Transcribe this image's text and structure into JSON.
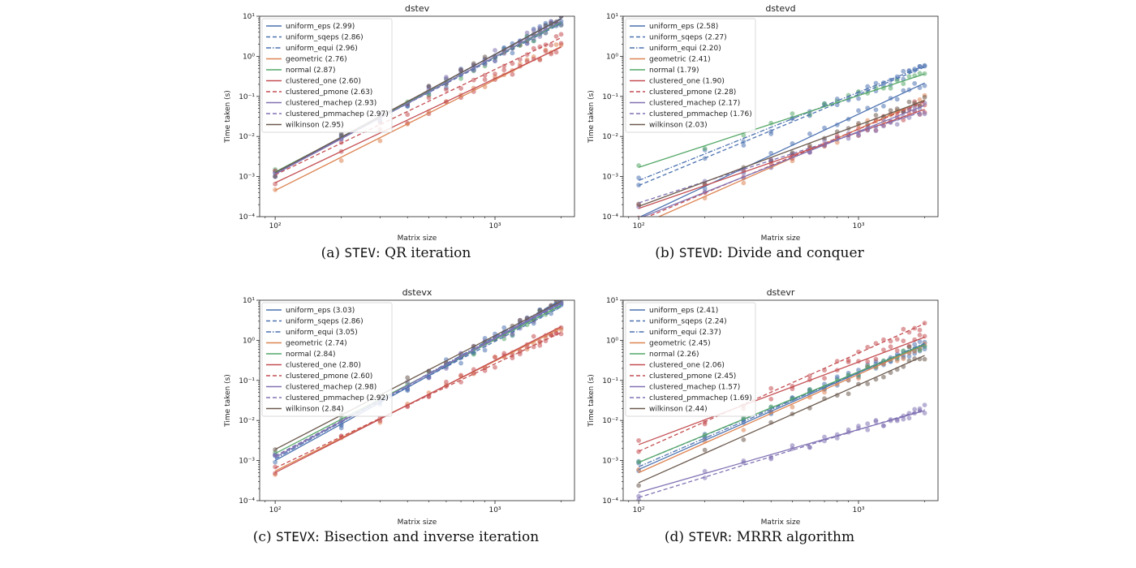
{
  "chart_data": [
    {
      "type": "scatter",
      "title": "dstev",
      "caption_prefix": "(a) ",
      "caption_code": "STEV",
      "caption_text": ": QR iteration",
      "xlabel": "Matrix size",
      "ylabel": "Time taken (s)",
      "xscale": "log",
      "yscale": "log",
      "xlim": [
        85,
        2300
      ],
      "ylim": [
        0.0001,
        10
      ],
      "x_ticks": [
        {
          "value": 100,
          "label": "10²"
        },
        {
          "value": 1000,
          "label": "10³"
        }
      ],
      "y_ticks": [
        {
          "value": 0.0001,
          "label": "10⁻⁴"
        },
        {
          "value": 0.001,
          "label": "10⁻³"
        },
        {
          "value": 0.01,
          "label": "10⁻²"
        },
        {
          "value": 0.1,
          "label": "10⁻¹"
        },
        {
          "value": 1,
          "label": "10⁰"
        },
        {
          "value": 10,
          "label": "10¹"
        }
      ],
      "legend": "upper-left",
      "x": [
        100,
        200,
        300,
        400,
        500,
        600,
        700,
        800,
        900,
        1000,
        1100,
        1200,
        1300,
        1400,
        1500,
        1600,
        1700,
        1800,
        1900,
        2000
      ],
      "series": [
        {
          "name": "uniform_eps (2.99)",
          "color": "#4c72b0",
          "dash": "solid",
          "y100": 0.00115,
          "slope": 2.99
        },
        {
          "name": "uniform_sqeps (2.86)",
          "color": "#4c72b0",
          "dash": "dashed",
          "y100": 0.00125,
          "slope": 2.86
        },
        {
          "name": "uniform_equi (2.96)",
          "color": "#4c72b0",
          "dash": "dashdot",
          "y100": 0.0012,
          "slope": 2.96
        },
        {
          "name": "geometric (2.76)",
          "color": "#dd8452",
          "dash": "solid",
          "y100": 0.00045,
          "slope": 2.76
        },
        {
          "name": "normal (2.87)",
          "color": "#55a868",
          "dash": "solid",
          "y100": 0.0013,
          "slope": 2.87
        },
        {
          "name": "clustered_one (2.60)",
          "color": "#c44e52",
          "dash": "solid",
          "y100": 0.0007,
          "slope": 2.6
        },
        {
          "name": "clustered_pmone (2.63)",
          "color": "#c44e52",
          "dash": "dashed",
          "y100": 0.0011,
          "slope": 2.63
        },
        {
          "name": "clustered_machep (2.93)",
          "color": "#8172b3",
          "dash": "solid",
          "y100": 0.00115,
          "slope": 2.93
        },
        {
          "name": "clustered_pmmachep (2.97)",
          "color": "#8172b3",
          "dash": "dashed",
          "y100": 0.0012,
          "slope": 2.97
        },
        {
          "name": "wilkinson (2.95)",
          "color": "#6b5a4e",
          "dash": "solid",
          "y100": 0.00125,
          "slope": 2.95
        }
      ]
    },
    {
      "type": "scatter",
      "title": "dstevd",
      "caption_prefix": "(b) ",
      "caption_code": "STEVD",
      "caption_text": ": Divide and conquer",
      "xlabel": "Matrix size",
      "ylabel": "Time taken (s)",
      "xscale": "log",
      "yscale": "log",
      "xlim": [
        85,
        2300
      ],
      "ylim": [
        0.0001,
        10
      ],
      "x_ticks": [
        {
          "value": 100,
          "label": "10²"
        },
        {
          "value": 1000,
          "label": "10³"
        }
      ],
      "y_ticks": [
        {
          "value": 0.0001,
          "label": "10⁻⁴"
        },
        {
          "value": 0.001,
          "label": "10⁻³"
        },
        {
          "value": 0.01,
          "label": "10⁻²"
        },
        {
          "value": 0.1,
          "label": "10⁻¹"
        },
        {
          "value": 1,
          "label": "10⁰"
        },
        {
          "value": 10,
          "label": "10¹"
        }
      ],
      "legend": "upper-left",
      "x": [
        100,
        200,
        300,
        400,
        500,
        600,
        700,
        800,
        900,
        1000,
        1100,
        1200,
        1300,
        1400,
        1500,
        1600,
        1700,
        1800,
        1900,
        2000
      ],
      "series": [
        {
          "name": "uniform_eps (2.58)",
          "color": "#4c72b0",
          "dash": "solid",
          "y100": 9.5e-05,
          "slope": 2.58
        },
        {
          "name": "uniform_sqeps (2.27)",
          "color": "#4c72b0",
          "dash": "dashed",
          "y100": 0.0006,
          "slope": 2.27
        },
        {
          "name": "uniform_equi (2.20)",
          "color": "#4c72b0",
          "dash": "dashdot",
          "y100": 0.0008,
          "slope": 2.2
        },
        {
          "name": "geometric (2.41)",
          "color": "#dd8452",
          "dash": "solid",
          "y100": 6e-05,
          "slope": 2.41
        },
        {
          "name": "normal (1.79)",
          "color": "#55a868",
          "dash": "solid",
          "y100": 0.0017,
          "slope": 1.79
        },
        {
          "name": "clustered_one (1.90)",
          "color": "#c44e52",
          "dash": "solid",
          "y100": 0.00016,
          "slope": 1.9
        },
        {
          "name": "clustered_pmone (2.28)",
          "color": "#c44e52",
          "dash": "dashed",
          "y100": 8e-05,
          "slope": 2.28
        },
        {
          "name": "clustered_machep (2.17)",
          "color": "#8172b3",
          "dash": "solid",
          "y100": 9e-05,
          "slope": 2.17
        },
        {
          "name": "clustered_pmmachep (1.76)",
          "color": "#8172b3",
          "dash": "dashed",
          "y100": 0.00022,
          "slope": 1.76
        },
        {
          "name": "wilkinson (2.03)",
          "color": "#6b5a4e",
          "dash": "solid",
          "y100": 0.00018,
          "slope": 2.03
        }
      ]
    },
    {
      "type": "scatter",
      "title": "dstevx",
      "caption_prefix": "(c) ",
      "caption_code": "STEVX",
      "caption_text": ": Bisection and inverse iteration",
      "xlabel": "Matrix size",
      "ylabel": "Time taken (s)",
      "xscale": "log",
      "yscale": "log",
      "xlim": [
        85,
        2300
      ],
      "ylim": [
        0.0001,
        10
      ],
      "x_ticks": [
        {
          "value": 100,
          "label": "10²"
        },
        {
          "value": 1000,
          "label": "10³"
        }
      ],
      "y_ticks": [
        {
          "value": 0.0001,
          "label": "10⁻⁴"
        },
        {
          "value": 0.001,
          "label": "10⁻³"
        },
        {
          "value": 0.01,
          "label": "10⁻²"
        },
        {
          "value": 0.1,
          "label": "10⁻¹"
        },
        {
          "value": 1,
          "label": "10⁰"
        },
        {
          "value": 10,
          "label": "10¹"
        }
      ],
      "legend": "upper-left",
      "x": [
        100,
        200,
        300,
        400,
        500,
        600,
        700,
        800,
        900,
        1000,
        1100,
        1200,
        1300,
        1400,
        1500,
        1600,
        1700,
        1800,
        1900,
        2000
      ],
      "series": [
        {
          "name": "uniform_eps (3.03)",
          "color": "#4c72b0",
          "dash": "solid",
          "y100": 0.001,
          "slope": 3.03
        },
        {
          "name": "uniform_sqeps (2.86)",
          "color": "#4c72b0",
          "dash": "dashed",
          "y100": 0.0013,
          "slope": 2.86
        },
        {
          "name": "uniform_equi (3.05)",
          "color": "#4c72b0",
          "dash": "dashdot",
          "y100": 0.0011,
          "slope": 3.05
        },
        {
          "name": "geometric (2.74)",
          "color": "#dd8452",
          "dash": "solid",
          "y100": 0.00055,
          "slope": 2.74
        },
        {
          "name": "normal (2.84)",
          "color": "#55a868",
          "dash": "solid",
          "y100": 0.0015,
          "slope": 2.84
        },
        {
          "name": "clustered_one (2.80)",
          "color": "#c44e52",
          "dash": "solid",
          "y100": 0.0005,
          "slope": 2.8
        },
        {
          "name": "clustered_pmone (2.60)",
          "color": "#c44e52",
          "dash": "dashed",
          "y100": 0.00065,
          "slope": 2.6
        },
        {
          "name": "clustered_machep (2.98)",
          "color": "#8172b3",
          "dash": "solid",
          "y100": 0.0012,
          "slope": 2.98
        },
        {
          "name": "clustered_pmmachep (2.92)",
          "color": "#8172b3",
          "dash": "dashed",
          "y100": 0.0013,
          "slope": 2.92
        },
        {
          "name": "wilkinson (2.84)",
          "color": "#6b5a4e",
          "dash": "solid",
          "y100": 0.0019,
          "slope": 2.84
        }
      ]
    },
    {
      "type": "scatter",
      "title": "dstevr",
      "caption_prefix": "(d) ",
      "caption_code": "STEVR",
      "caption_text": ": MRRR algorithm",
      "xlabel": "Matrix size",
      "ylabel": "Time taken (s)",
      "xscale": "log",
      "yscale": "log",
      "xlim": [
        85,
        2300
      ],
      "ylim": [
        0.0001,
        10
      ],
      "x_ticks": [
        {
          "value": 100,
          "label": "10²"
        },
        {
          "value": 1000,
          "label": "10³"
        }
      ],
      "y_ticks": [
        {
          "value": 0.0001,
          "label": "10⁻⁴"
        },
        {
          "value": 0.001,
          "label": "10⁻³"
        },
        {
          "value": 0.01,
          "label": "10⁻²"
        },
        {
          "value": 0.1,
          "label": "10⁻¹"
        },
        {
          "value": 1,
          "label": "10⁰"
        },
        {
          "value": 10,
          "label": "10¹"
        }
      ],
      "legend": "upper-left",
      "x": [
        100,
        200,
        300,
        400,
        500,
        600,
        700,
        800,
        900,
        1000,
        1100,
        1200,
        1300,
        1400,
        1500,
        1600,
        1700,
        1800,
        1900,
        2000
      ],
      "series": [
        {
          "name": "uniform_eps (2.41)",
          "color": "#4c72b0",
          "dash": "solid",
          "y100": 0.0006,
          "slope": 2.41
        },
        {
          "name": "uniform_sqeps (2.24)",
          "color": "#4c72b0",
          "dash": "dashed",
          "y100": 0.0009,
          "slope": 2.24
        },
        {
          "name": "uniform_equi (2.37)",
          "color": "#4c72b0",
          "dash": "dashdot",
          "y100": 0.0007,
          "slope": 2.37
        },
        {
          "name": "geometric (2.45)",
          "color": "#dd8452",
          "dash": "solid",
          "y100": 0.0005,
          "slope": 2.45
        },
        {
          "name": "normal (2.26)",
          "color": "#55a868",
          "dash": "solid",
          "y100": 0.0009,
          "slope": 2.26
        },
        {
          "name": "clustered_one (2.06)",
          "color": "#c44e52",
          "dash": "solid",
          "y100": 0.0025,
          "slope": 2.06
        },
        {
          "name": "clustered_pmone (2.45)",
          "color": "#c44e52",
          "dash": "dashed",
          "y100": 0.0017,
          "slope": 2.45
        },
        {
          "name": "clustered_machep (1.57)",
          "color": "#8172b3",
          "dash": "solid",
          "y100": 0.00016,
          "slope": 1.57
        },
        {
          "name": "clustered_pmmachep (1.69)",
          "color": "#8172b3",
          "dash": "dashed",
          "y100": 0.00012,
          "slope": 1.69
        },
        {
          "name": "wilkinson (2.44)",
          "color": "#6b5a4e",
          "dash": "solid",
          "y100": 0.00028,
          "slope": 2.44
        }
      ]
    }
  ]
}
